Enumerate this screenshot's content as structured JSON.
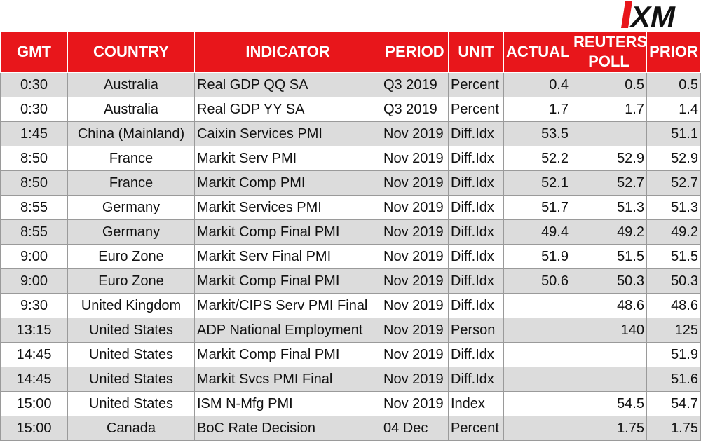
{
  "logo": {
    "text": "XM",
    "color": "#e8161b"
  },
  "headers": [
    "GMT",
    "COUNTRY",
    "INDICATOR",
    "PERIOD",
    "UNIT",
    "ACTUAL",
    "REUTERS POLL",
    "PRIOR"
  ],
  "header_reuters_line1": "REUTERS",
  "header_reuters_line2": "POLL",
  "rows": [
    [
      "0:30",
      "Australia",
      "Real GDP QQ SA",
      "Q3 2019",
      "Percent",
      "0.4",
      "0.5",
      "0.5"
    ],
    [
      "0:30",
      "Australia",
      "Real GDP YY SA",
      "Q3 2019",
      "Percent",
      "1.7",
      "1.7",
      "1.4"
    ],
    [
      "1:45",
      "China (Mainland)",
      "Caixin Services PMI",
      "Nov 2019",
      "Diff.Idx",
      "53.5",
      "",
      "51.1"
    ],
    [
      "8:50",
      "France",
      "Markit Serv PMI",
      "Nov 2019",
      "Diff.Idx",
      "52.2",
      "52.9",
      "52.9"
    ],
    [
      "8:50",
      "France",
      "Markit Comp PMI",
      "Nov 2019",
      "Diff.Idx",
      "52.1",
      "52.7",
      "52.7"
    ],
    [
      "8:55",
      "Germany",
      "Markit Services PMI",
      "Nov 2019",
      "Diff.Idx",
      "51.7",
      "51.3",
      "51.3"
    ],
    [
      "8:55",
      "Germany",
      "Markit Comp Final PMI",
      "Nov 2019",
      "Diff.Idx",
      "49.4",
      "49.2",
      "49.2"
    ],
    [
      "9:00",
      "Euro Zone",
      "Markit Serv Final PMI",
      "Nov 2019",
      "Diff.Idx",
      "51.9",
      "51.5",
      "51.5"
    ],
    [
      "9:00",
      "Euro Zone",
      "Markit Comp Final PMI",
      "Nov 2019",
      "Diff.Idx",
      "50.6",
      "50.3",
      "50.3"
    ],
    [
      "9:30",
      "United Kingdom",
      "Markit/CIPS Serv PMI Final",
      "Nov 2019",
      "Diff.Idx",
      "",
      "48.6",
      "48.6"
    ],
    [
      "13:15",
      "United States",
      "ADP National Employment",
      "Nov 2019",
      "Person",
      "",
      "140",
      "125"
    ],
    [
      "14:45",
      "United States",
      "Markit Comp Final PMI",
      "Nov 2019",
      "Diff.Idx",
      "",
      "",
      "51.9"
    ],
    [
      "14:45",
      "United States",
      "Markit Svcs PMI Final",
      "Nov 2019",
      "Diff.Idx",
      "",
      "",
      "51.6"
    ],
    [
      "15:00",
      "United States",
      "ISM N-Mfg PMI",
      "Nov 2019",
      "Index",
      "",
      "54.5",
      "54.7"
    ],
    [
      "15:00",
      "Canada",
      "BoC Rate Decision",
      "04 Dec",
      "Percent",
      "",
      "1.75",
      "1.75"
    ]
  ]
}
